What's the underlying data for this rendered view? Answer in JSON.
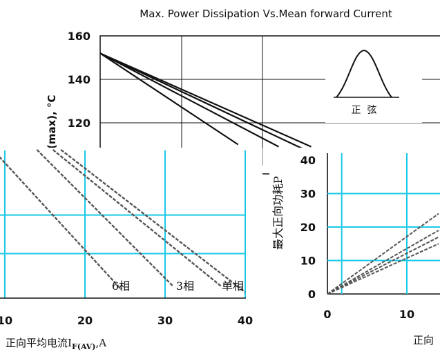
{
  "chart_data": [
    {
      "type": "line",
      "title": "Max. Power Dissipation Vs.Mean forward Current",
      "ylabel": "(max), °C",
      "xlabel": "",
      "ylim": [
        100,
        160
      ],
      "yticks": [
        120,
        140,
        160
      ],
      "grid": true,
      "inset": {
        "label": "正  弦",
        "shape": "sine-half-wave"
      },
      "series": [
        {
          "x": [
            0,
            17
          ],
          "y": [
            152,
            110
          ]
        },
        {
          "x": [
            0,
            22
          ],
          "y": [
            152,
            109
          ]
        },
        {
          "x": [
            0,
            25
          ],
          "y": [
            152,
            108
          ]
        },
        {
          "x": [
            0,
            26
          ],
          "y": [
            152,
            109
          ]
        }
      ]
    },
    {
      "type": "line",
      "title": "",
      "xlabel_main": "正向平均电流I",
      "xlabel_sub": "F(AV)",
      "xlabel_unit": ",A",
      "ylabel": "",
      "xlim": [
        5,
        40
      ],
      "xticks": [
        10,
        20,
        30,
        40
      ],
      "grid": true,
      "annotations": [
        "6相",
        "3相",
        "单相"
      ],
      "series": [
        {
          "name": "6相",
          "x": [
            8.5,
            24.5
          ],
          "y": [
            50,
            3
          ]
        },
        {
          "name": "3相",
          "x": [
            14,
            31
          ],
          "y": [
            50,
            4
          ]
        },
        {
          "name": "单相",
          "x": [
            16,
            37
          ],
          "y": [
            50,
            4
          ]
        },
        {
          "x": [
            17,
            40
          ],
          "y": [
            50,
            2
          ]
        }
      ]
    },
    {
      "type": "line",
      "title": "",
      "ylabel": "最大正向功耗P",
      "xlabel": "正向",
      "xlim": [
        0,
        14
      ],
      "ylim": [
        0,
        40
      ],
      "xticks": [
        0,
        10
      ],
      "yticks": [
        0,
        10,
        20,
        30,
        40
      ],
      "grid": true,
      "series": [
        {
          "x": [
            0,
            14
          ],
          "y": [
            0,
            24
          ]
        },
        {
          "x": [
            0,
            14
          ],
          "y": [
            0,
            19
          ]
        },
        {
          "x": [
            0,
            14
          ],
          "y": [
            0,
            17
          ]
        },
        {
          "x": [
            0,
            14
          ],
          "y": [
            0,
            15
          ]
        }
      ]
    }
  ]
}
